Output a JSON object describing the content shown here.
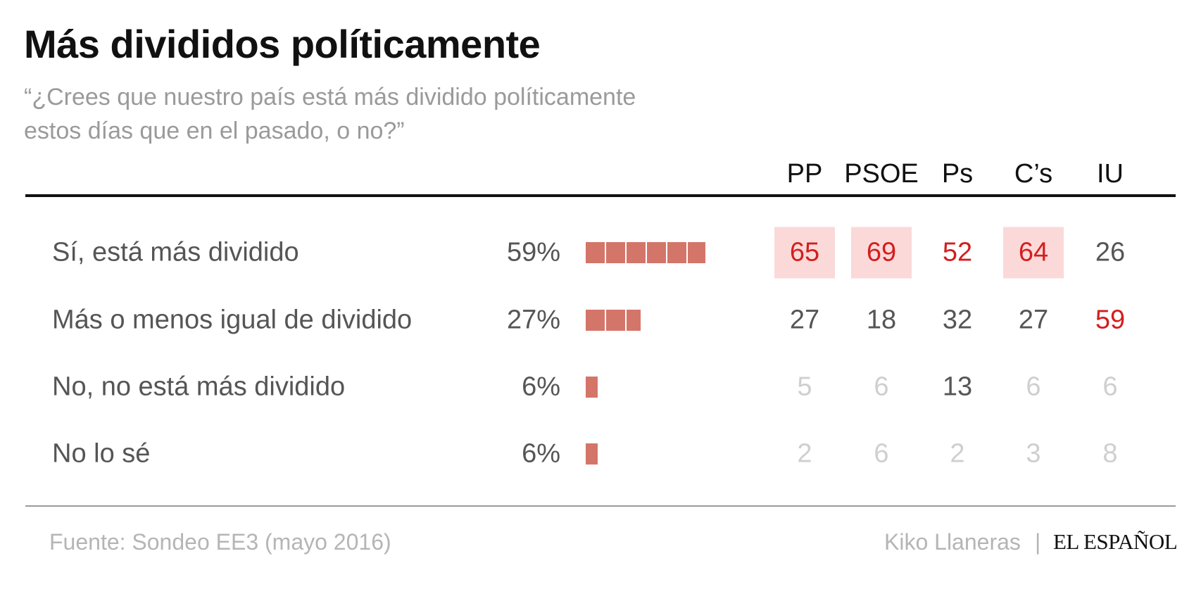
{
  "title": "Más divididos políticamente",
  "subtitle": "“¿Crees que nuestro país está más dividido políticamente estos días que en el pasado, o no?”",
  "footer": {
    "source": "Fuente: Sondeo EE3 (mayo 2016)",
    "author": "Kiko Llaneras",
    "separator": "|",
    "brand": "EL ESPAÑOL"
  },
  "colors": {
    "bar": "#d4756a",
    "highlight_bg": "#fbd9d9",
    "value_red": "#d41e1e",
    "value_dark": "#555555",
    "value_faded": "#cfcfcf"
  },
  "chart_data": {
    "type": "table",
    "columns": [
      "PP",
      "PSOE",
      "Ps",
      "C’s",
      "IU"
    ],
    "rows": [
      {
        "label": "Sí, está más dividido",
        "total": 59,
        "total_label": "59%",
        "values": [
          65,
          69,
          52,
          64,
          26
        ],
        "styles": [
          "red-highlight",
          "red-highlight",
          "red",
          "red-highlight",
          "dark"
        ]
      },
      {
        "label": "Más o menos igual de dividido",
        "total": 27,
        "total_label": "27%",
        "values": [
          27,
          18,
          32,
          27,
          59
        ],
        "styles": [
          "dark",
          "dark",
          "dark",
          "dark",
          "red"
        ]
      },
      {
        "label": "No, no está más dividido",
        "total": 6,
        "total_label": "6%",
        "values": [
          5,
          6,
          13,
          6,
          6
        ],
        "styles": [
          "faded",
          "faded",
          "dark",
          "faded",
          "faded"
        ]
      },
      {
        "label": "No lo sé",
        "total": 6,
        "total_label": "6%",
        "values": [
          2,
          6,
          2,
          3,
          8
        ],
        "styles": [
          "faded",
          "faded",
          "faded",
          "faded",
          "faded"
        ]
      }
    ]
  }
}
